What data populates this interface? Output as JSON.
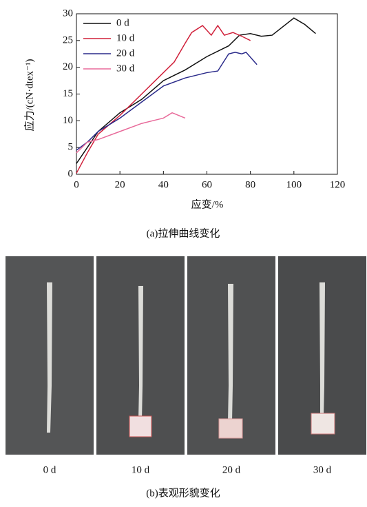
{
  "chart_data": {
    "type": "line",
    "xlabel": "应变/%",
    "ylabel": "应力/(cN·dtex⁻¹)",
    "xlim": [
      0,
      120
    ],
    "xticks": [
      0,
      20,
      40,
      60,
      80,
      100,
      120
    ],
    "ylim": [
      0,
      30
    ],
    "yticks": [
      0,
      5,
      10,
      15,
      20,
      25,
      30
    ],
    "legend": "upper-left",
    "series": [
      {
        "name": "0 d",
        "color": "#111111",
        "x": [
          0,
          5,
          10,
          20,
          30,
          40,
          50,
          60,
          70,
          75,
          80,
          85,
          90,
          100,
          105,
          110
        ],
        "values": [
          2,
          5,
          8,
          11.5,
          14,
          17.5,
          19.5,
          22,
          24,
          26,
          26.3,
          25.8,
          26,
          29.2,
          28,
          26.3
        ]
      },
      {
        "name": "10 d",
        "color": "#d0203a",
        "x": [
          0,
          5,
          10,
          20,
          30,
          40,
          45,
          50,
          53,
          58,
          62,
          65,
          68,
          72,
          76,
          80
        ],
        "values": [
          0.2,
          4,
          7.5,
          11,
          15,
          19,
          21,
          24.5,
          26.5,
          27.8,
          26,
          27.8,
          26,
          26.5,
          25.8,
          25
        ]
      },
      {
        "name": "20 d",
        "color": "#2a2a8a",
        "x": [
          0,
          5,
          10,
          20,
          30,
          40,
          50,
          60,
          65,
          70,
          73,
          76,
          78,
          83
        ],
        "values": [
          4.5,
          6,
          8,
          10.5,
          13.5,
          16.5,
          18,
          19,
          19.3,
          22.5,
          22.8,
          22.5,
          22.8,
          20.5
        ]
      },
      {
        "name": "30 d",
        "color": "#e86a9a",
        "x": [
          0,
          5,
          10,
          20,
          30,
          35,
          40,
          44,
          47,
          50
        ],
        "values": [
          4,
          6,
          6.5,
          8,
          9.5,
          10,
          10.5,
          11.5,
          11,
          10.5
        ]
      }
    ]
  },
  "caption_a": "(a)拉伸曲线变化",
  "photos": [
    "0 d",
    "10 d",
    "20 d",
    "30 d"
  ],
  "caption_b": "(b)表观形貌变化"
}
